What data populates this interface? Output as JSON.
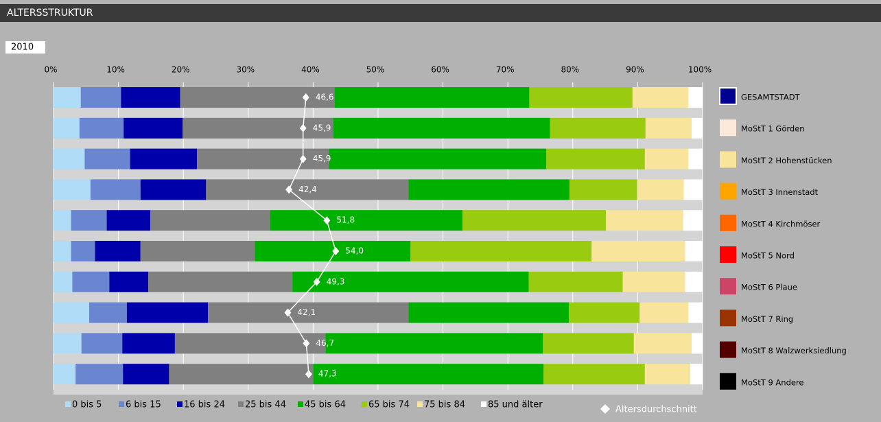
{
  "chart_data": {
    "type": "stacked-bar-horizontal",
    "title": "ALTERSSTRUKTUR",
    "subtitle": "2010",
    "categories": [
      "GESAMTSTADT",
      "MoStT 1 Görden",
      "MoStT 2 Hohenstücken",
      "MoStT 3 Innenstadt",
      "MoStT 4 Kirchmöser",
      "MoStT 5 Nord",
      "MoStT 6 Plaue",
      "MoStT 7 Ring",
      "MoStT 8 Walzwerksiedlung",
      "MoStT 9 Andere"
    ],
    "category_colors": [
      "#000090",
      "#fde9d9",
      "#f8e49a",
      "#ffa500",
      "#ff6600",
      "#ff0000",
      "#cc4466",
      "#993300",
      "#550000",
      "#000000"
    ],
    "xlim": [
      0,
      100
    ],
    "xticks": [
      {
        "value": 0,
        "label": "0%"
      },
      {
        "value": 10,
        "label": "10%"
      },
      {
        "value": 20,
        "label": "20%"
      },
      {
        "value": 30,
        "label": "30%"
      },
      {
        "value": 40,
        "label": "40%"
      },
      {
        "value": 50,
        "label": "50%"
      },
      {
        "value": 60,
        "label": "60%"
      },
      {
        "value": 70,
        "label": "70%"
      },
      {
        "value": 80,
        "label": "80%"
      },
      {
        "value": 90,
        "label": "90%"
      },
      {
        "value": 100,
        "label": "100%"
      }
    ],
    "x2lim": [
      -16,
      145
    ],
    "grid": true,
    "series": [
      {
        "name": "0 bis 5",
        "color": "#b0dcf8",
        "values": [
          4.2,
          4.0,
          4.8,
          5.7,
          2.7,
          2.7,
          2.9,
          5.5,
          4.3,
          3.4
        ]
      },
      {
        "name": "6 bis 15",
        "color": "#6b86d0",
        "values": [
          6.2,
          6.8,
          7.0,
          7.7,
          5.5,
          3.7,
          5.7,
          5.8,
          6.3,
          7.3
        ]
      },
      {
        "name": "16 bis 24",
        "color": "#0000aa",
        "values": [
          9.1,
          9.1,
          10.3,
          10.1,
          6.7,
          7.0,
          6.0,
          12.5,
          8.1,
          7.1
        ]
      },
      {
        "name": "25 bis 44",
        "color": "#808080",
        "values": [
          23.8,
          23.2,
          20.3,
          31.2,
          18.5,
          17.6,
          22.2,
          30.9,
          23.2,
          22.2
        ]
      },
      {
        "name": "45 bis 64",
        "color": "#00b000",
        "values": [
          30.0,
          33.4,
          33.5,
          24.8,
          29.6,
          24.0,
          36.4,
          24.7,
          33.5,
          35.5
        ]
      },
      {
        "name": "65 bis 74",
        "color": "#99cc11",
        "values": [
          15.9,
          14.7,
          15.2,
          10.4,
          22.1,
          27.9,
          14.5,
          10.9,
          14.0,
          15.6
        ]
      },
      {
        "name": "75 bis 84",
        "color": "#f8e49a",
        "values": [
          8.6,
          7.1,
          6.7,
          7.2,
          11.9,
          14.4,
          9.6,
          7.5,
          8.9,
          7.0
        ]
      },
      {
        "name": "85 und älter",
        "color": "#ffffff",
        "values": [
          2.2,
          1.7,
          2.2,
          2.9,
          3.0,
          2.7,
          2.7,
          2.2,
          1.7,
          1.9
        ]
      },
      {
        "name": "Altersdurchschnitt",
        "color": "#ffffff",
        "axis": "x2",
        "type": "line",
        "values": [
          46.6,
          45.9,
          45.9,
          42.4,
          51.8,
          54.0,
          49.3,
          42.1,
          46.7,
          47.3
        ],
        "value_labels": [
          "46,6",
          "45,9",
          "45,9",
          "42,4",
          "51,8",
          "54,0",
          "49,3",
          "42,1",
          "46,7",
          "47,3"
        ]
      }
    ]
  }
}
